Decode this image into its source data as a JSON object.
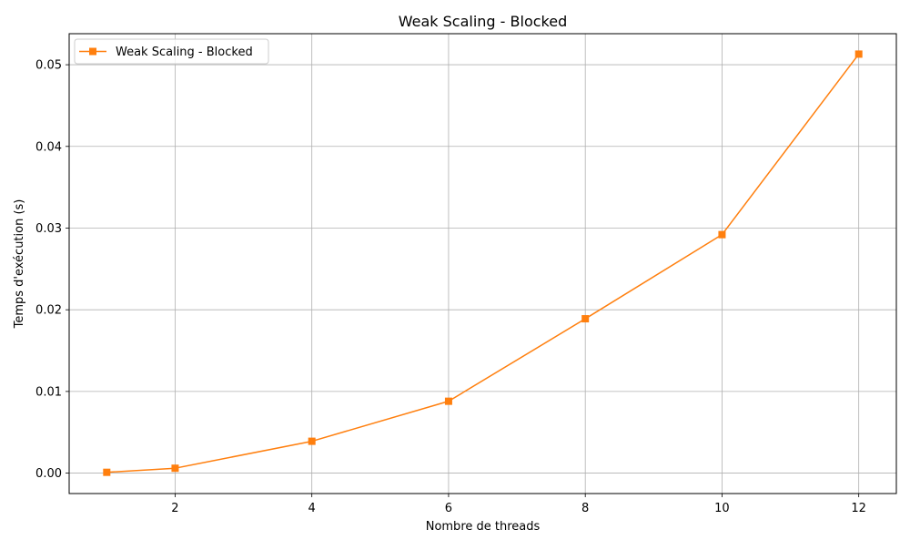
{
  "chart_data": {
    "type": "line",
    "title": "Weak Scaling - Blocked",
    "xlabel": "Nombre de threads",
    "ylabel": "Temps d'exécution (s)",
    "xlim": [
      0.45,
      12.55
    ],
    "ylim": [
      -0.0025,
      0.0538
    ],
    "xticks": [
      2,
      4,
      6,
      8,
      10,
      12
    ],
    "xtick_labels": [
      "2",
      "4",
      "6",
      "8",
      "10",
      "12"
    ],
    "yticks": [
      0.0,
      0.01,
      0.02,
      0.03,
      0.04,
      0.05
    ],
    "ytick_labels": [
      "0.00",
      "0.01",
      "0.02",
      "0.03",
      "0.04",
      "0.05"
    ],
    "grid": true,
    "legend_position": "top-left",
    "series": [
      {
        "name": "Weak Scaling - Blocked",
        "color": "#ff7f0e",
        "marker": "square",
        "x": [
          1,
          2,
          4,
          6,
          8,
          10,
          12
        ],
        "y": [
          0.0001,
          0.0006,
          0.0039,
          0.0088,
          0.0189,
          0.0292,
          0.0513
        ]
      }
    ]
  }
}
